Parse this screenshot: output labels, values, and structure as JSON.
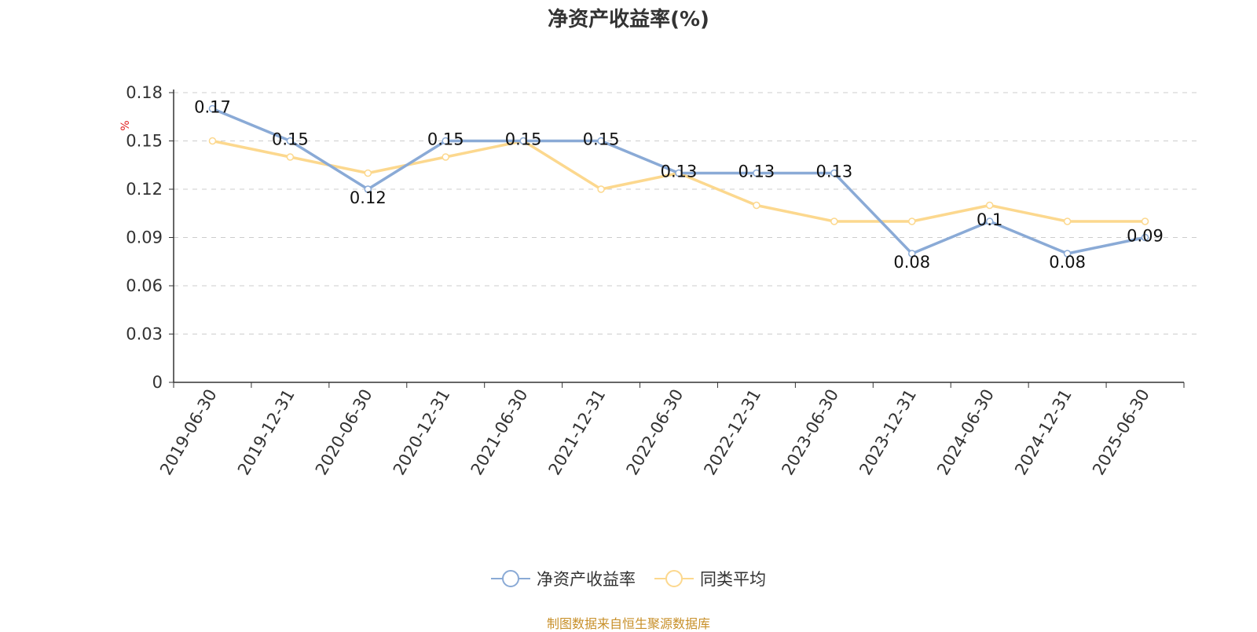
{
  "chart_data": {
    "type": "line",
    "title": "净资产收益率(%)",
    "ylabel": "%",
    "categories": [
      "2019-06-30",
      "2019-12-31",
      "2020-06-30",
      "2020-12-31",
      "2021-06-30",
      "2021-12-31",
      "2022-06-30",
      "2022-12-31",
      "2023-06-30",
      "2023-12-31",
      "2024-06-30",
      "2024-12-31",
      "2025-06-30"
    ],
    "yticks": [
      "0",
      "0.03",
      "0.06",
      "0.09",
      "0.12",
      "0.15",
      "0.18"
    ],
    "ylim": [
      0,
      0.18
    ],
    "grid": true,
    "legend_position": "bottom",
    "series": [
      {
        "name": "净资产收益率",
        "color": "#8aaad6",
        "values": [
          0.17,
          0.15,
          0.12,
          0.15,
          0.15,
          0.15,
          0.13,
          0.13,
          0.13,
          0.08,
          0.1,
          0.08,
          0.09
        ],
        "labels": [
          "0.17",
          "0.15",
          "0.12",
          "0.15",
          "0.15",
          "0.15",
          "0.13",
          "0.13",
          "0.13",
          "0.08",
          "0.1",
          "0.08",
          "0.09"
        ]
      },
      {
        "name": "同类平均",
        "color": "#fcd88e",
        "values": [
          0.15,
          0.14,
          0.13,
          0.14,
          0.15,
          0.12,
          0.13,
          0.11,
          0.1,
          0.1,
          0.11,
          0.1,
          0.1
        ]
      }
    ]
  },
  "source_note": "制图数据来自恒生聚源数据库"
}
